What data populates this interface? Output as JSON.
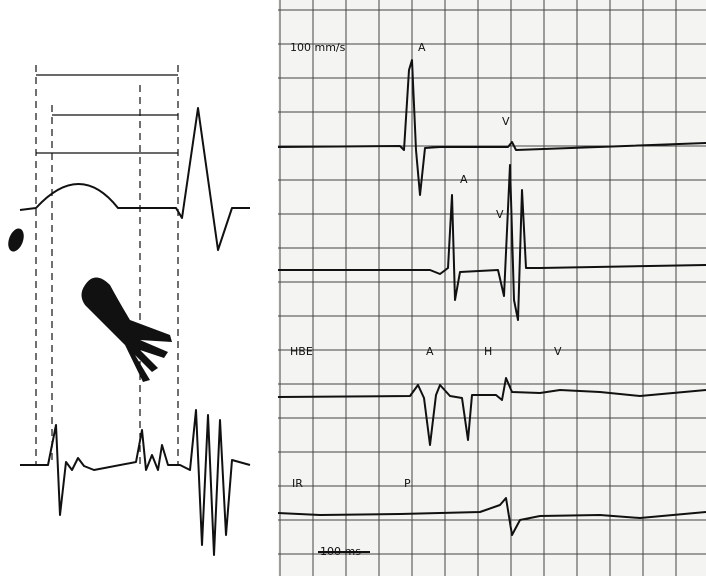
{
  "recording": {
    "paper_speed": "100 mm/s",
    "time_scale": "100 ms",
    "lead_labels": [
      "HBE",
      "IR"
    ],
    "wave_labels": [
      "A",
      "V",
      "A",
      "V",
      "A",
      "H",
      "V",
      "P"
    ]
  }
}
